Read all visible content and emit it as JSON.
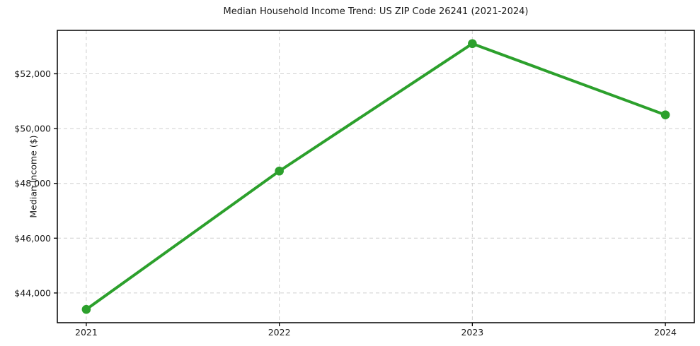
{
  "chart_data": {
    "type": "line",
    "title": "Median Household Income Trend: US ZIP Code 26241 (2021-2024)",
    "xlabel": "",
    "ylabel": "Median Income ($)",
    "categories": [
      "2021",
      "2022",
      "2023",
      "2024"
    ],
    "series": [
      {
        "name": "Median Household Income",
        "values": [
          43400,
          48450,
          53100,
          50500
        ]
      }
    ],
    "y_ticks": [
      44000,
      46000,
      48000,
      50000,
      52000
    ],
    "y_tick_labels": [
      "$44,000",
      "$46,000",
      "$48,000",
      "$50,000",
      "$52,000"
    ],
    "ylim": [
      42915,
      53585
    ],
    "grid": true,
    "grid_style": "dashed",
    "legend_position": "none",
    "line_color": "#2ca02c",
    "marker": "circle",
    "grid_color": "#cfcfcf",
    "spine_color": "#000000",
    "text_color": "#1a1a1a"
  }
}
